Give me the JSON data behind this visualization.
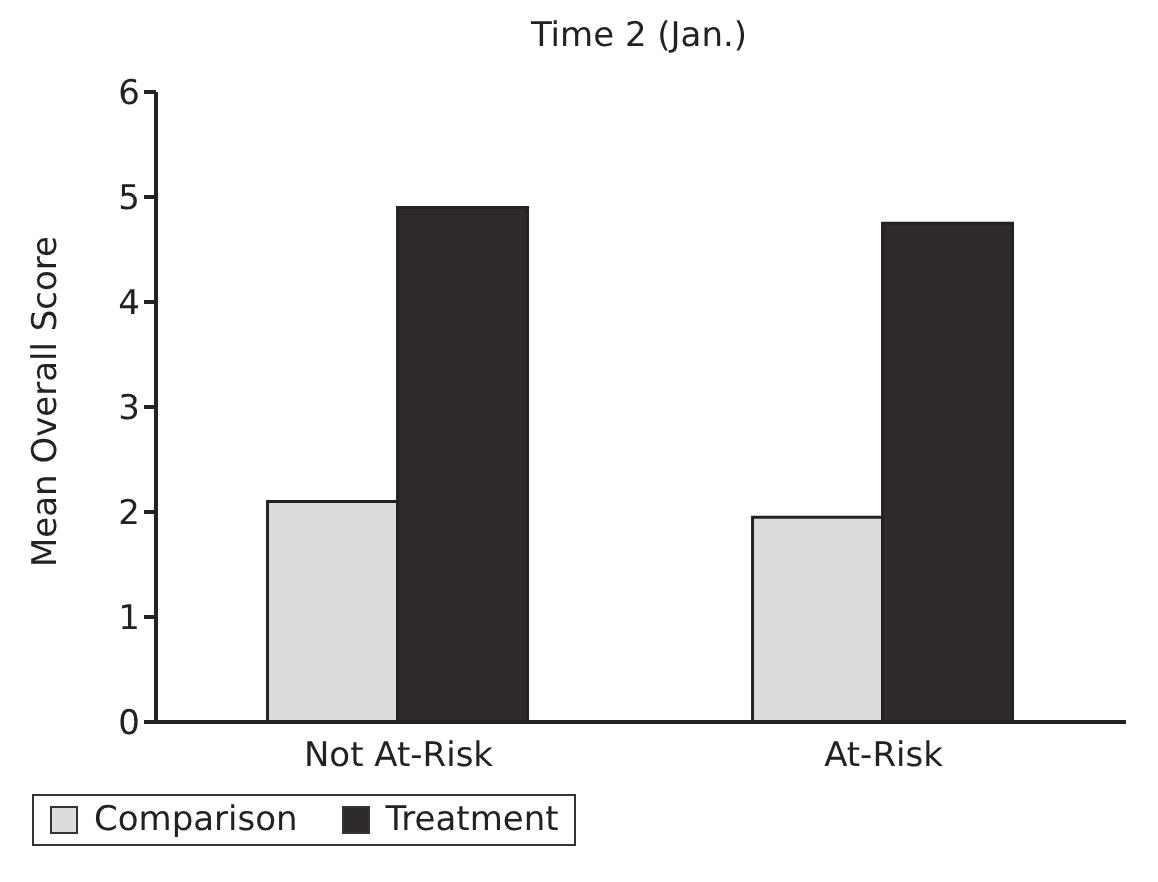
{
  "chart_data": {
    "type": "bar",
    "title": "Time 2 (Jan.)",
    "ylabel": "Mean Overall Score",
    "categories": [
      "Not At-Risk",
      "At-Risk"
    ],
    "series": [
      {
        "name": "Comparison",
        "color": "#dcdcdc",
        "values": [
          2.1,
          1.95
        ]
      },
      {
        "name": "Treatment",
        "color": "#2e2a2a",
        "values": [
          4.9,
          4.75
        ]
      }
    ],
    "ylim": [
      0,
      6
    ],
    "yticks": [
      0,
      1,
      2,
      3,
      4,
      5,
      6
    ],
    "grid": false,
    "legend": "bottom"
  }
}
